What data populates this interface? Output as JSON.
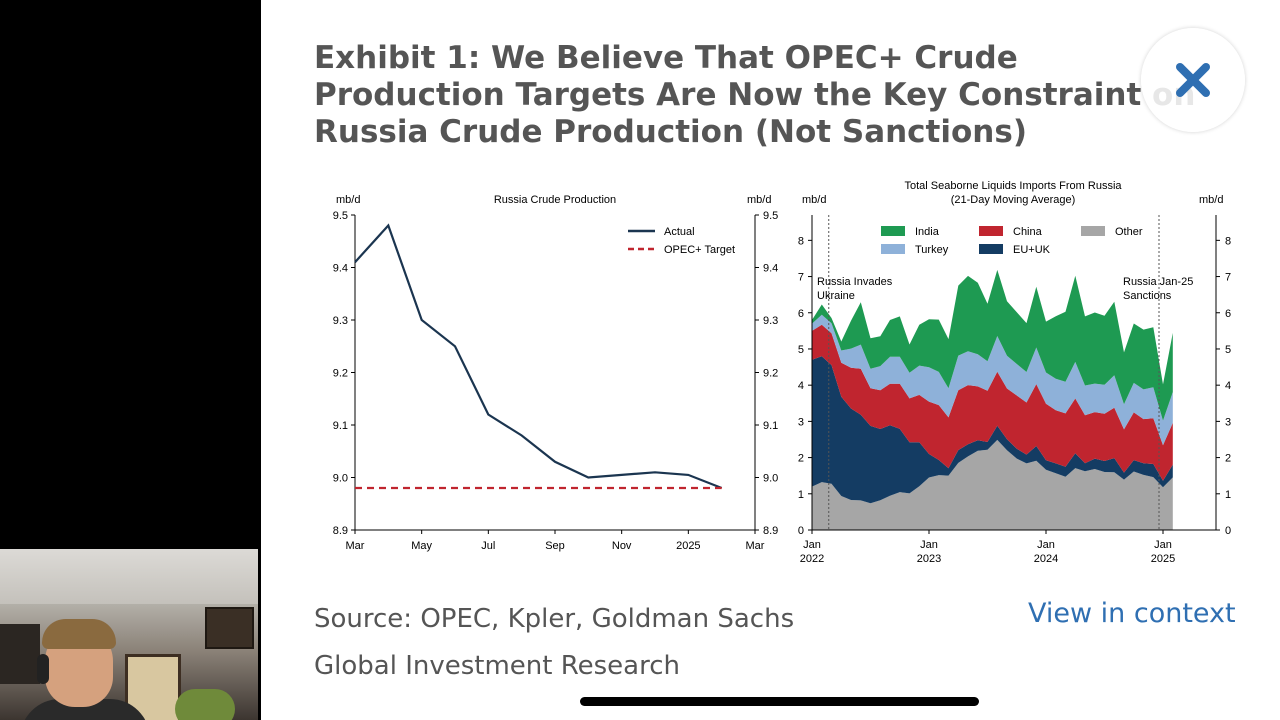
{
  "exhibit": {
    "title": "Exhibit 1: We Believe That OPEC+ Crude Production Targets Are Now the Key Constraint on Russia Crude Production (Not Sanctions)",
    "source": "Source: OPEC, Kpler, Goldman Sachs Global Investment Research",
    "view_in_context": "View in context",
    "close_icon": "close-x-icon",
    "accent_color": "#2f6fb2"
  },
  "chart_data": [
    {
      "type": "line",
      "title": "Russia Crude Production",
      "ylabel_left": "mb/d",
      "ylabel_right": "mb/d",
      "ylim": [
        8.9,
        9.5
      ],
      "yticks": [
        "8.9",
        "9.0",
        "9.1",
        "9.2",
        "9.3",
        "9.4",
        "9.5"
      ],
      "xticks": [
        "Mar",
        "May",
        "Jul",
        "Sep",
        "Nov",
        "2025",
        "Mar"
      ],
      "x": [
        "2024-03",
        "2024-04",
        "2024-05",
        "2024-06",
        "2024-07",
        "2024-08",
        "2024-09",
        "2024-10",
        "2024-11",
        "2024-12",
        "2025-01",
        "2025-02"
      ],
      "legend_position": "top-right",
      "series": [
        {
          "name": "Actual",
          "color": "#1b3550",
          "style": "solid",
          "values": [
            9.41,
            9.48,
            9.3,
            9.25,
            9.12,
            9.08,
            9.03,
            9.0,
            9.005,
            9.01,
            9.005,
            8.98
          ]
        },
        {
          "name": "OPEC+ Target",
          "color": "#c0252f",
          "style": "dashed",
          "values": [
            8.98,
            8.98,
            8.98,
            8.98,
            8.98,
            8.98,
            8.98,
            8.98,
            8.98,
            8.98,
            8.98,
            8.98
          ]
        }
      ]
    },
    {
      "type": "area",
      "title": "Total Seaborne Liquids Imports From Russia",
      "subtitle": "(21-Day Moving Average)",
      "ylabel_left": "mb/d",
      "ylabel_right": "mb/d",
      "ylim_left": [
        0,
        8.7
      ],
      "ylim_right": [
        0,
        8.7
      ],
      "yticks_left": [
        "0",
        "1",
        "2",
        "3",
        "4",
        "5",
        "6",
        "7",
        "8"
      ],
      "yticks_right": [
        "0",
        "1",
        "2",
        "3",
        "4",
        "5",
        "6",
        "7",
        "8"
      ],
      "xticks": [
        {
          "line1": "Jan",
          "line2": "2022"
        },
        {
          "line1": "Jan",
          "line2": "2023"
        },
        {
          "line1": "Jan",
          "line2": "2024"
        },
        {
          "line1": "Jan",
          "line2": "2025"
        }
      ],
      "legend_position": "top",
      "x": [
        "2022-01",
        "2022-02",
        "2022-03",
        "2022-04",
        "2022-05",
        "2022-06",
        "2022-07",
        "2022-08",
        "2022-09",
        "2022-10",
        "2022-11",
        "2022-12",
        "2023-01",
        "2023-02",
        "2023-03",
        "2023-04",
        "2023-05",
        "2023-06",
        "2023-07",
        "2023-08",
        "2023-09",
        "2023-10",
        "2023-11",
        "2023-12",
        "2024-01",
        "2024-02",
        "2024-03",
        "2024-04",
        "2024-05",
        "2024-06",
        "2024-07",
        "2024-08",
        "2024-09",
        "2024-10",
        "2024-11",
        "2024-12",
        "2025-01",
        "2025-02"
      ],
      "annotations": [
        {
          "text_line1": "Russia Invades",
          "text_line2": "Ukraine",
          "x": "2022-02"
        },
        {
          "text_line1": "Russia Jan-25",
          "text_line2": "Sanctions",
          "x": "2025-01"
        }
      ],
      "series": [
        {
          "name": "Other",
          "color": "#a6a6a6",
          "values": [
            1.2,
            1.25,
            1.3,
            1.0,
            0.8,
            0.75,
            0.8,
            0.85,
            0.9,
            1.0,
            1.1,
            1.2,
            1.4,
            1.5,
            1.6,
            1.8,
            2.0,
            2.2,
            2.3,
            2.4,
            2.2,
            2.0,
            1.9,
            1.8,
            1.7,
            1.6,
            1.5,
            1.6,
            1.7,
            1.7,
            1.6,
            1.5,
            1.5,
            1.6,
            1.5,
            1.4,
            1.3,
            1.4
          ]
        },
        {
          "name": "EU+UK",
          "color": "#143c63",
          "values": [
            3.5,
            3.4,
            3.3,
            2.8,
            2.5,
            2.3,
            2.2,
            2.0,
            1.9,
            1.7,
            1.5,
            1.2,
            0.6,
            0.4,
            0.3,
            0.3,
            0.3,
            0.3,
            0.3,
            0.3,
            0.3,
            0.3,
            0.3,
            0.3,
            0.3,
            0.3,
            0.3,
            0.3,
            0.3,
            0.3,
            0.3,
            0.3,
            0.3,
            0.3,
            0.3,
            0.3,
            0.3,
            0.3
          ]
        },
        {
          "name": "China",
          "color": "#c0252f",
          "values": [
            0.8,
            0.8,
            0.9,
            1.0,
            1.1,
            1.2,
            1.1,
            1.1,
            1.1,
            1.2,
            1.3,
            1.3,
            1.4,
            1.5,
            1.5,
            1.6,
            1.6,
            1.5,
            1.5,
            1.4,
            1.4,
            1.5,
            1.5,
            1.6,
            1.6,
            1.5,
            1.5,
            1.4,
            1.4,
            1.3,
            1.3,
            1.3,
            1.3,
            1.3,
            1.2,
            1.2,
            1.1,
            1.1
          ]
        },
        {
          "name": "Turkey",
          "color": "#8eb1d9",
          "values": [
            0.2,
            0.2,
            0.3,
            0.4,
            0.5,
            0.6,
            0.6,
            0.7,
            0.7,
            0.7,
            0.8,
            0.8,
            0.9,
            0.9,
            0.9,
            0.9,
            0.9,
            0.9,
            0.9,
            0.9,
            0.9,
            0.9,
            0.9,
            0.9,
            0.9,
            0.9,
            0.9,
            0.9,
            0.9,
            0.8,
            0.8,
            0.8,
            0.8,
            0.8,
            0.8,
            0.8,
            0.8,
            0.8
          ]
        },
        {
          "name": "India",
          "color": "#1e9a52",
          "values": [
            0.1,
            0.1,
            0.2,
            0.4,
            0.7,
            1.0,
            1.0,
            0.9,
            0.9,
            1.0,
            1.0,
            1.1,
            1.2,
            1.4,
            1.6,
            1.8,
            2.0,
            2.0,
            1.8,
            1.6,
            1.5,
            1.5,
            1.5,
            1.4,
            1.5,
            1.8,
            2.0,
            2.1,
            2.1,
            2.0,
            1.9,
            1.8,
            1.7,
            1.6,
            1.6,
            1.5,
            1.3,
            1.5
          ]
        }
      ]
    }
  ]
}
